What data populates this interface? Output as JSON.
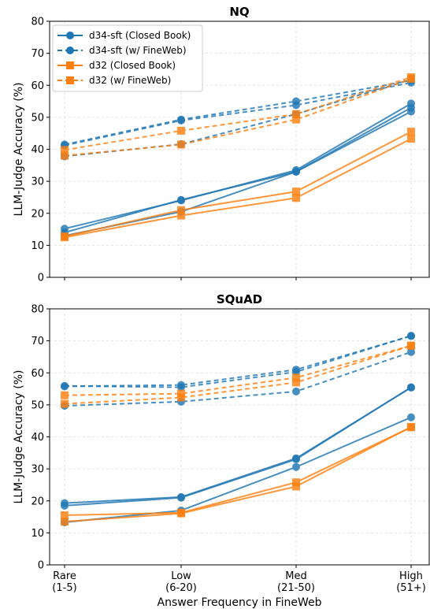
{
  "chart_data": [
    {
      "type": "line",
      "title": "NQ",
      "xlabel": "",
      "ylabel": "LLM-Judge Accuracy (%)",
      "ylim": [
        0,
        80
      ],
      "yticks": [
        0,
        10,
        20,
        30,
        40,
        50,
        60,
        70,
        80
      ],
      "grid": true,
      "legend": {
        "placement": "top-left"
      },
      "series": [
        {
          "name": "d34-sft (Closed Book)",
          "color": "#1f77b4",
          "dashed": false,
          "marker": "circle",
          "show_in_legend": true,
          "values": [
            14.0,
            24.2,
            33.0,
            53.0
          ]
        },
        {
          "color": "#1f77b4",
          "dashed": false,
          "marker": "circle",
          "show_in_legend": false,
          "values": [
            15.2,
            24.0,
            33.5,
            54.3
          ]
        },
        {
          "color": "#1f77b4",
          "dashed": false,
          "marker": "circle",
          "show_in_legend": false,
          "values": [
            13.0,
            20.5,
            33.0,
            51.8
          ]
        },
        {
          "name": "d34-sft (w/ FineWeb)",
          "color": "#1f77b4",
          "dashed": true,
          "marker": "circle",
          "show_in_legend": true,
          "values": [
            41.5,
            49.3,
            55.0,
            61.5
          ]
        },
        {
          "color": "#1f77b4",
          "dashed": true,
          "marker": "circle",
          "show_in_legend": false,
          "values": [
            41.2,
            49.0,
            53.8,
            60.8
          ]
        },
        {
          "color": "#1f77b4",
          "dashed": true,
          "marker": "circle",
          "show_in_legend": false,
          "values": [
            37.8,
            41.6,
            51.0,
            61.8
          ]
        },
        {
          "name": "d32 (Closed Book)",
          "color": "#ff7f0e",
          "dashed": false,
          "marker": "square",
          "show_in_legend": true,
          "values": [
            12.8,
            21.0,
            26.8,
            45.5
          ]
        },
        {
          "color": "#ff7f0e",
          "dashed": false,
          "marker": "square",
          "show_in_legend": false,
          "values": [
            12.5,
            19.3,
            24.8,
            43.3
          ]
        },
        {
          "name": "d32 (w/ FineWeb)",
          "color": "#ff7f0e",
          "dashed": true,
          "marker": "square",
          "show_in_legend": true,
          "values": [
            39.8,
            45.8,
            51.0,
            62.5
          ]
        },
        {
          "color": "#ff7f0e",
          "dashed": true,
          "marker": "square",
          "show_in_legend": false,
          "values": [
            38.0,
            41.5,
            49.3,
            62.0
          ]
        }
      ]
    },
    {
      "type": "line",
      "title": "SQuAD",
      "xlabel": "Answer Frequency in FineWeb",
      "ylabel": "LLM-Judge Accuracy (%)",
      "ylim": [
        0,
        80
      ],
      "yticks": [
        0,
        10,
        20,
        30,
        40,
        50,
        60,
        70,
        80
      ],
      "grid": true,
      "categories": [
        "Rare\n(1-5)",
        "Low\n(6-20)",
        "Med\n(21-50)",
        "High\n(51+)"
      ],
      "series": [
        {
          "color": "#1f77b4",
          "dashed": false,
          "marker": "circle",
          "values": [
            18.5,
            21.0,
            33.0,
            55.5
          ]
        },
        {
          "color": "#1f77b4",
          "dashed": false,
          "marker": "circle",
          "values": [
            19.3,
            21.2,
            33.3,
            55.4
          ]
        },
        {
          "color": "#1f77b4",
          "dashed": false,
          "marker": "circle",
          "values": [
            13.3,
            17.0,
            30.6,
            46.1
          ]
        },
        {
          "color": "#1f77b4",
          "dashed": true,
          "marker": "circle",
          "values": [
            55.8,
            56.2,
            61.0,
            71.5
          ]
        },
        {
          "color": "#1f77b4",
          "dashed": true,
          "marker": "circle",
          "values": [
            55.9,
            55.5,
            60.3,
            71.6
          ]
        },
        {
          "color": "#1f77b4",
          "dashed": true,
          "marker": "circle",
          "values": [
            49.7,
            51.0,
            54.2,
            66.5
          ]
        },
        {
          "color": "#ff7f0e",
          "dashed": false,
          "marker": "square",
          "values": [
            15.5,
            16.3,
            25.8,
            43.0
          ]
        },
        {
          "color": "#ff7f0e",
          "dashed": false,
          "marker": "square",
          "values": [
            13.5,
            16.1,
            24.5,
            43.1
          ]
        },
        {
          "color": "#ff7f0e",
          "dashed": true,
          "marker": "square",
          "values": [
            53.0,
            53.5,
            58.5,
            68.5
          ]
        },
        {
          "color": "#ff7f0e",
          "dashed": true,
          "marker": "square",
          "values": [
            50.3,
            52.3,
            57.0,
            68.5
          ]
        }
      ]
    }
  ]
}
